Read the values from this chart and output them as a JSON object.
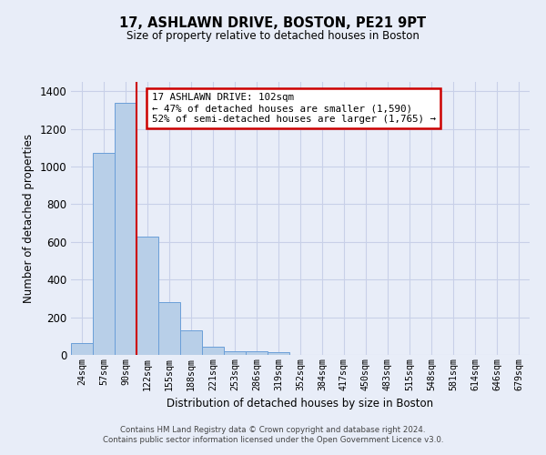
{
  "title": "17, ASHLAWN DRIVE, BOSTON, PE21 9PT",
  "subtitle": "Size of property relative to detached houses in Boston",
  "xlabel": "Distribution of detached houses by size in Boston",
  "ylabel": "Number of detached properties",
  "bar_values": [
    62,
    1075,
    1340,
    630,
    280,
    130,
    45,
    20,
    20,
    15,
    0,
    0,
    0,
    0,
    0,
    0,
    0,
    0,
    0,
    0,
    0
  ],
  "bar_labels": [
    "24sqm",
    "57sqm",
    "90sqm",
    "122sqm",
    "155sqm",
    "188sqm",
    "221sqm",
    "253sqm",
    "286sqm",
    "319sqm",
    "352sqm",
    "384sqm",
    "417sqm",
    "450sqm",
    "483sqm",
    "515sqm",
    "548sqm",
    "581sqm",
    "614sqm",
    "646sqm",
    "679sqm"
  ],
  "bar_color": "#b8cfe8",
  "bar_edge_color": "#6a9fd8",
  "red_line_x": 2.5,
  "annotation_title": "17 ASHLAWN DRIVE: 102sqm",
  "annotation_line1": "← 47% of detached houses are smaller (1,590)",
  "annotation_line2": "52% of semi-detached houses are larger (1,765) →",
  "annotation_box_color": "#ffffff",
  "annotation_box_edge": "#cc0000",
  "ylim": [
    0,
    1450
  ],
  "yticks": [
    0,
    200,
    400,
    600,
    800,
    1000,
    1200,
    1400
  ],
  "footer_line1": "Contains HM Land Registry data © Crown copyright and database right 2024.",
  "footer_line2": "Contains public sector information licensed under the Open Government Licence v3.0.",
  "background_color": "#e8edf8",
  "grid_color": "#c8d0e8"
}
